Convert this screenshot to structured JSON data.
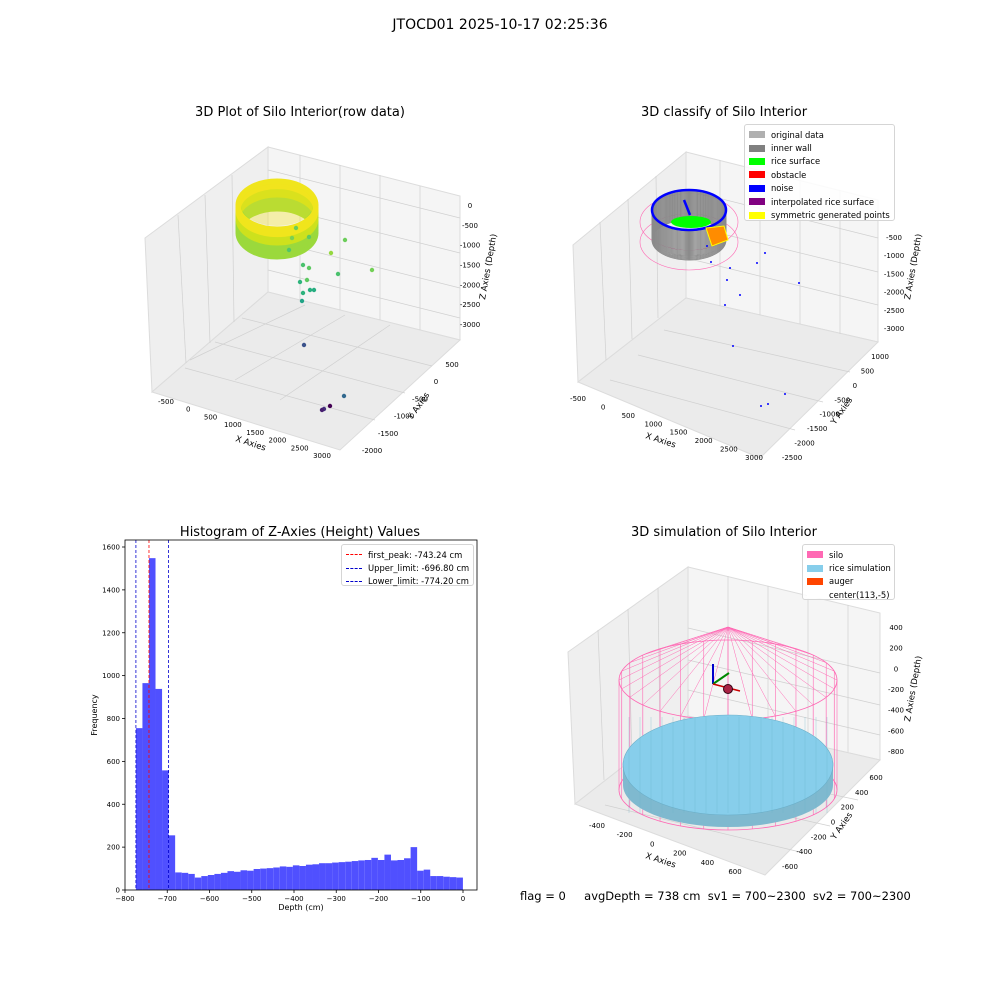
{
  "suptitle": "JTOCD01 2025-10-17 02:25:36",
  "footer": {
    "flag": "flag = 0",
    "avg": "avgDepth = 738 cm",
    "sv1": "sv1 = 700~2300",
    "sv2": "sv2 = 700~2300"
  },
  "chart_data": [
    {
      "type": "scatter",
      "title": "3D Plot of Silo Interior(row data)",
      "xlabel": "X Axies",
      "ylabel": "Y Axies",
      "zlabel": "Z Axies (Depth)",
      "x_ticks": [
        "-500",
        "0",
        "500",
        "1000",
        "1500",
        "2000",
        "2500",
        "3000"
      ],
      "y_ticks": [
        "500",
        "0",
        "-500",
        "-1000",
        "-1500",
        "-2000"
      ],
      "z_ticks": [
        "0",
        "-500",
        "-1000",
        "-1500",
        "-2000",
        "-2500",
        "-3000"
      ],
      "series": [
        {
          "values": [
            [
              -300,
              -200,
              -750
            ],
            [
              300,
              -300,
              -1000
            ],
            [
              500,
              -200,
              -1300
            ],
            [
              800,
              -500,
              -1600
            ],
            [
              1500,
              -1800,
              -2700
            ],
            [
              2300,
              -2000,
              -3100
            ]
          ]
        }
      ]
    },
    {
      "type": "scatter",
      "title": "3D classify of Silo Interior",
      "xlabel": "X Axies",
      "ylabel": "Y Axies",
      "zlabel": "Z Axies (Depth)",
      "x_ticks": [
        "-500",
        "0",
        "500",
        "1000",
        "1500",
        "2000",
        "2500",
        "3000"
      ],
      "y_ticks": [
        "1000",
        "500",
        "0",
        "-500",
        "-1000",
        "-1500",
        "-2000",
        "-2500"
      ],
      "z_ticks": [
        "-500",
        "-1000",
        "-1500",
        "-2000",
        "-2500",
        "-3000"
      ],
      "legend": {
        "placement": "top-right",
        "items": [
          {
            "label": "original data",
            "color": "#b0b0b0"
          },
          {
            "label": "inner wall",
            "color": "#808080"
          },
          {
            "label": "rice surface",
            "color": "#00ff00"
          },
          {
            "label": "obstacle",
            "color": "#ff0000"
          },
          {
            "label": "noise",
            "color": "#0000ff"
          },
          {
            "label": "interpolated rice surface",
            "color": "#800080"
          },
          {
            "label": "symmetric generated points",
            "color": "#ffff00"
          }
        ]
      }
    },
    {
      "type": "bar",
      "title": "Histogram of Z-Axies (Height) Values",
      "xlabel": "Depth (cm)",
      "ylabel": "Frequency",
      "xlim": [
        -800,
        0
      ],
      "ylim": [
        0,
        1600
      ],
      "x_ticks": [
        "−800",
        "−700",
        "−600",
        "−500",
        "−400",
        "−300",
        "−200",
        "−100",
        "0"
      ],
      "y_ticks": [
        "0",
        "200",
        "400",
        "600",
        "800",
        "1000",
        "1200",
        "1400",
        "1600"
      ],
      "bar_color": "#5050ff",
      "bin_start": -774.2,
      "bin_width": 15.48,
      "values": [
        755,
        965,
        1548,
        938,
        558,
        255,
        82,
        80,
        75,
        58,
        65,
        70,
        75,
        80,
        88,
        85,
        92,
        90,
        98,
        100,
        102,
        105,
        110,
        108,
        115,
        112,
        118,
        120,
        125,
        125,
        128,
        130,
        132,
        135,
        138,
        140,
        150,
        140,
        165,
        138,
        140,
        148,
        200,
        90,
        95,
        65,
        65,
        62,
        60,
        58
      ],
      "vlines": [
        {
          "label": "first_peak: -743.24 cm",
          "x": -743.24,
          "color": "#ff0000"
        },
        {
          "label": "Upper_limit: -696.80 cm",
          "x": -696.8,
          "color": "#0000cc"
        },
        {
          "label": "Lower_limit: -774.20 cm",
          "x": -774.2,
          "color": "#0000cc"
        }
      ]
    },
    {
      "type": "scatter",
      "title": "3D simulation of Silo Interior",
      "xlabel": "X Axies",
      "ylabel": "Y Axies",
      "zlabel": "Z Axies (Depth)",
      "x_ticks": [
        "-400",
        "-200",
        "0",
        "200",
        "400",
        "600"
      ],
      "y_ticks": [
        "600",
        "400",
        "200",
        "0",
        "-200",
        "-400",
        "-600"
      ],
      "z_ticks": [
        "400",
        "200",
        "0",
        "-200",
        "-400",
        "-600",
        "-800"
      ],
      "legend": {
        "placement": "top-right",
        "items": [
          {
            "label": "silo",
            "color": "#ff69b4"
          },
          {
            "label": "rice simulation",
            "color": "#87ceeb"
          },
          {
            "label": "auger",
            "color": "#ff4500"
          },
          {
            "label": "center(113,-5)",
            "color": "#ffffff"
          }
        ]
      }
    }
  ]
}
